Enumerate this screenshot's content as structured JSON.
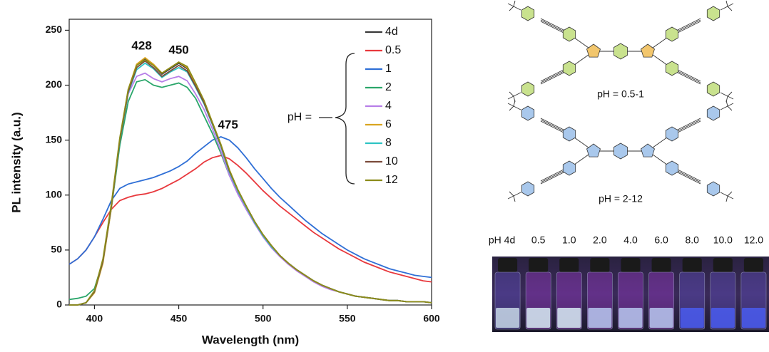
{
  "chart_data": {
    "type": "line",
    "x_label": "Wavelength (nm)",
    "y_label": "PL intensity (a.u.)",
    "legend_title": "pH =",
    "xlim": [
      385,
      600
    ],
    "xticks": [
      400,
      450,
      500,
      550,
      600
    ],
    "ylim": [
      0,
      260
    ],
    "yticks": [
      0,
      50,
      100,
      150,
      200,
      250
    ],
    "peaks": [
      428,
      450,
      475
    ],
    "x": [
      385,
      390,
      395,
      400,
      405,
      410,
      415,
      420,
      425,
      430,
      435,
      440,
      445,
      450,
      455,
      460,
      465,
      470,
      475,
      480,
      485,
      490,
      495,
      500,
      505,
      510,
      515,
      520,
      525,
      530,
      535,
      540,
      545,
      550,
      555,
      560,
      565,
      570,
      575,
      580,
      585,
      590,
      595,
      600
    ],
    "series": [
      {
        "name": "4d",
        "color": "#3a3a3a",
        "values": [
          0,
          0,
          2,
          12,
          40,
          90,
          150,
          195,
          218,
          224,
          218,
          210,
          215,
          220,
          215,
          200,
          185,
          165,
          145,
          122,
          105,
          90,
          76,
          64,
          54,
          45,
          38,
          32,
          27,
          22,
          18,
          15,
          12,
          10,
          8,
          7,
          6,
          5,
          4,
          4,
          3,
          3,
          3,
          2
        ]
      },
      {
        "name": "0.5",
        "color": "#e8383d",
        "values": [
          37,
          42,
          50,
          62,
          75,
          87,
          95,
          98,
          100,
          101,
          103,
          106,
          110,
          114,
          119,
          124,
          130,
          134,
          136,
          133,
          127,
          120,
          112,
          104,
          97,
          90,
          84,
          78,
          72,
          66,
          61,
          56,
          51,
          47,
          43,
          39,
          36,
          33,
          30,
          28,
          26,
          24,
          22,
          21
        ]
      },
      {
        "name": "1",
        "color": "#2f6fd6",
        "values": [
          37,
          42,
          50,
          62,
          78,
          95,
          106,
          110,
          112,
          114,
          116,
          119,
          122,
          126,
          131,
          138,
          144,
          150,
          153,
          150,
          143,
          134,
          124,
          115,
          106,
          98,
          91,
          84,
          77,
          71,
          65,
          60,
          55,
          50,
          46,
          42,
          39,
          36,
          33,
          31,
          29,
          27,
          26,
          25
        ]
      },
      {
        "name": "2",
        "color": "#2aa66a",
        "values": [
          5,
          6,
          8,
          15,
          40,
          88,
          145,
          185,
          203,
          205,
          200,
          198,
          200,
          202,
          198,
          188,
          172,
          156,
          138,
          118,
          102,
          88,
          75,
          63,
          53,
          45,
          38,
          32,
          27,
          22,
          18,
          15,
          12,
          10,
          8,
          7,
          6,
          5,
          4,
          4,
          3,
          3,
          3,
          2
        ]
      },
      {
        "name": "4",
        "color": "#b77ee8",
        "values": [
          0,
          0,
          2,
          12,
          40,
          90,
          150,
          192,
          208,
          211,
          206,
          203,
          206,
          208,
          204,
          192,
          178,
          160,
          140,
          118,
          101,
          87,
          74,
          62,
          52,
          44,
          37,
          31,
          26,
          21,
          17,
          14,
          12,
          10,
          8,
          7,
          6,
          5,
          4,
          4,
          3,
          3,
          3,
          2
        ]
      },
      {
        "name": "6",
        "color": "#d9a520",
        "values": [
          0,
          0,
          2,
          11,
          38,
          88,
          150,
          196,
          219,
          225,
          219,
          211,
          216,
          221,
          216,
          201,
          186,
          166,
          146,
          123,
          105,
          90,
          76,
          64,
          54,
          45,
          38,
          32,
          27,
          22,
          18,
          15,
          12,
          10,
          8,
          7,
          6,
          5,
          4,
          4,
          3,
          3,
          3,
          2
        ]
      },
      {
        "name": "8",
        "color": "#2ec4c4",
        "values": [
          0,
          0,
          2,
          12,
          40,
          90,
          149,
          193,
          214,
          220,
          215,
          207,
          212,
          216,
          212,
          198,
          183,
          164,
          144,
          121,
          104,
          89,
          75,
          63,
          53,
          45,
          38,
          32,
          27,
          22,
          18,
          15,
          12,
          10,
          8,
          7,
          6,
          5,
          4,
          4,
          3,
          3,
          3,
          2
        ]
      },
      {
        "name": "10",
        "color": "#7a4a3a",
        "values": [
          0,
          0,
          2,
          12,
          40,
          90,
          150,
          194,
          216,
          222,
          216,
          208,
          213,
          218,
          213,
          199,
          184,
          165,
          145,
          122,
          105,
          90,
          76,
          64,
          54,
          45,
          38,
          32,
          27,
          22,
          18,
          15,
          12,
          10,
          8,
          7,
          6,
          5,
          4,
          4,
          3,
          3,
          3,
          2
        ]
      },
      {
        "name": "12",
        "color": "#8c8c1a",
        "values": [
          0,
          0,
          2,
          13,
          42,
          92,
          152,
          196,
          218,
          223,
          218,
          211,
          216,
          221,
          217,
          202,
          186,
          166,
          146,
          123,
          105,
          90,
          76,
          64,
          54,
          45,
          38,
          32,
          27,
          22,
          18,
          15,
          12,
          10,
          8,
          7,
          6,
          5,
          4,
          4,
          3,
          3,
          3,
          2
        ]
      }
    ]
  },
  "structures": [
    {
      "label": "pH = 0.5-1"
    },
    {
      "label": "pH = 2-12"
    }
  ],
  "photo": {
    "labels": [
      "pH 4d",
      "0.5",
      "1.0",
      "2.0",
      "4.0",
      "6.0",
      "8.0",
      "10.0",
      "12.0"
    ]
  }
}
